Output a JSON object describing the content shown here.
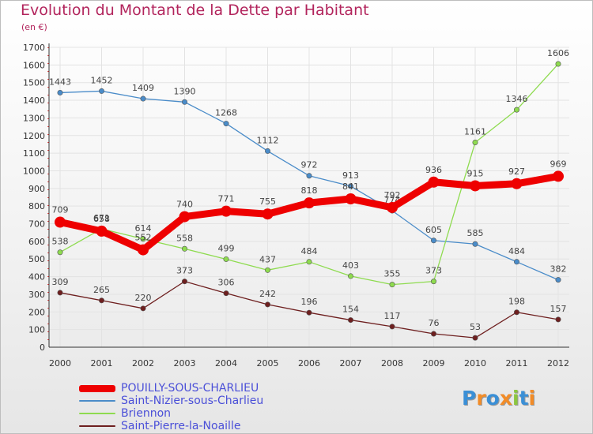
{
  "title": "Evolution du Montant de la Dette par Habitant",
  "unit": "(en €)",
  "logo": {
    "text": "Proxiti",
    "letters": [
      "P",
      "r",
      "o",
      "x",
      "i",
      "t",
      "i"
    ],
    "colors": [
      "#3a8fd6",
      "#f28c28",
      "#3a8fd6",
      "#f28c28",
      "#8cc63f",
      "#3a8fd6",
      "#f28c28"
    ]
  },
  "chart_data": {
    "type": "line",
    "title": "Evolution du Montant de la Dette par Habitant",
    "ylabel": "(en €)",
    "xlabel": "",
    "x": [
      "2000",
      "2001",
      "2002",
      "2003",
      "2004",
      "2005",
      "2006",
      "2007",
      "2008",
      "2009",
      "2010",
      "2011",
      "2012"
    ],
    "ylim": [
      0,
      1700
    ],
    "yticks": [
      0,
      100,
      200,
      300,
      400,
      500,
      600,
      700,
      800,
      900,
      1000,
      1100,
      1200,
      1300,
      1400,
      1500,
      1600,
      1700
    ],
    "grid": true,
    "legend_position": "bottom-left",
    "series": [
      {
        "name": "POUILLY-SOUS-CHARLIEU",
        "color": "#ee0000",
        "values": [
          709,
          658,
          552,
          740,
          771,
          755,
          818,
          841,
          792,
          936,
          915,
          927,
          969
        ]
      },
      {
        "name": "Saint-Nizier-sous-Charlieu",
        "color": "#4a8cc9",
        "values": [
          1443,
          1452,
          1409,
          1390,
          1268,
          1112,
          972,
          913,
          774,
          605,
          585,
          484,
          382
        ]
      },
      {
        "name": "Briennon",
        "color": "#8edb4f",
        "values": [
          538,
          671,
          614,
          558,
          499,
          437,
          484,
          403,
          355,
          373,
          1161,
          1346,
          1606
        ]
      },
      {
        "name": "Saint-Pierre-la-Noaille",
        "color": "#6e1f1f",
        "values": [
          309,
          265,
          220,
          373,
          306,
          242,
          196,
          154,
          117,
          76,
          53,
          198,
          157
        ]
      }
    ]
  }
}
